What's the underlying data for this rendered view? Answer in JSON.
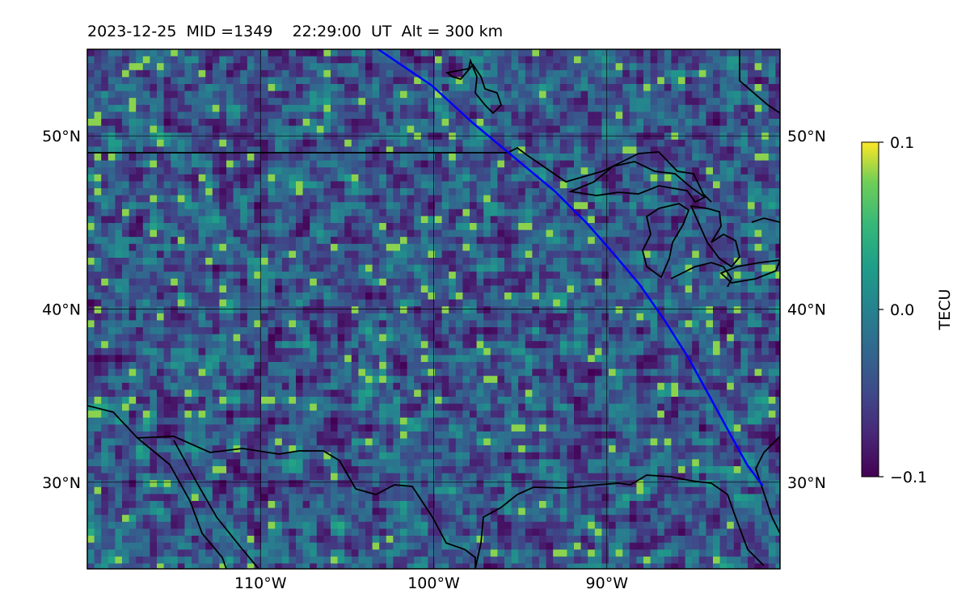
{
  "title": "2023-12-25  MID =1349    22:29:00  UT  Alt = 300 km",
  "map": {
    "lon_range": [
      -120,
      -80
    ],
    "lat_range": [
      25,
      55
    ],
    "lat_ticks": [
      {
        "lat": 50,
        "label": "50°N"
      },
      {
        "lat": 40,
        "label": "40°N"
      },
      {
        "lat": 30,
        "label": "30°N"
      }
    ],
    "lon_ticks": [
      {
        "lon": -110,
        "label": "110°W"
      },
      {
        "lon": -100,
        "label": "100°W"
      },
      {
        "lon": -90,
        "label": "90°W"
      }
    ],
    "gridlines": true,
    "colormap": "viridis",
    "colors": {
      "track": "#0000ff",
      "coastline": "#000000"
    },
    "satellite_track": [
      [
        -103.2,
        55.0
      ],
      [
        -100.1,
        52.9
      ],
      [
        -97.8,
        50.8
      ],
      [
        -95.4,
        48.8
      ],
      [
        -93.0,
        46.8
      ],
      [
        -91.1,
        44.9
      ],
      [
        -89.7,
        43.3
      ],
      [
        -88.1,
        41.4
      ],
      [
        -86.7,
        39.4
      ],
      [
        -85.3,
        37.2
      ],
      [
        -84.2,
        35.2
      ],
      [
        -83.0,
        33.0
      ],
      [
        -81.9,
        31.0
      ],
      [
        -81.0,
        29.8
      ]
    ]
  },
  "colorbar": {
    "label": "TECU",
    "min": -0.1,
    "max": 0.1,
    "ticks": [
      {
        "value": 0.1,
        "label": "0.1"
      },
      {
        "value": 0.0,
        "label": "0.0"
      },
      {
        "value": -0.1,
        "label": "−0.1"
      }
    ]
  }
}
